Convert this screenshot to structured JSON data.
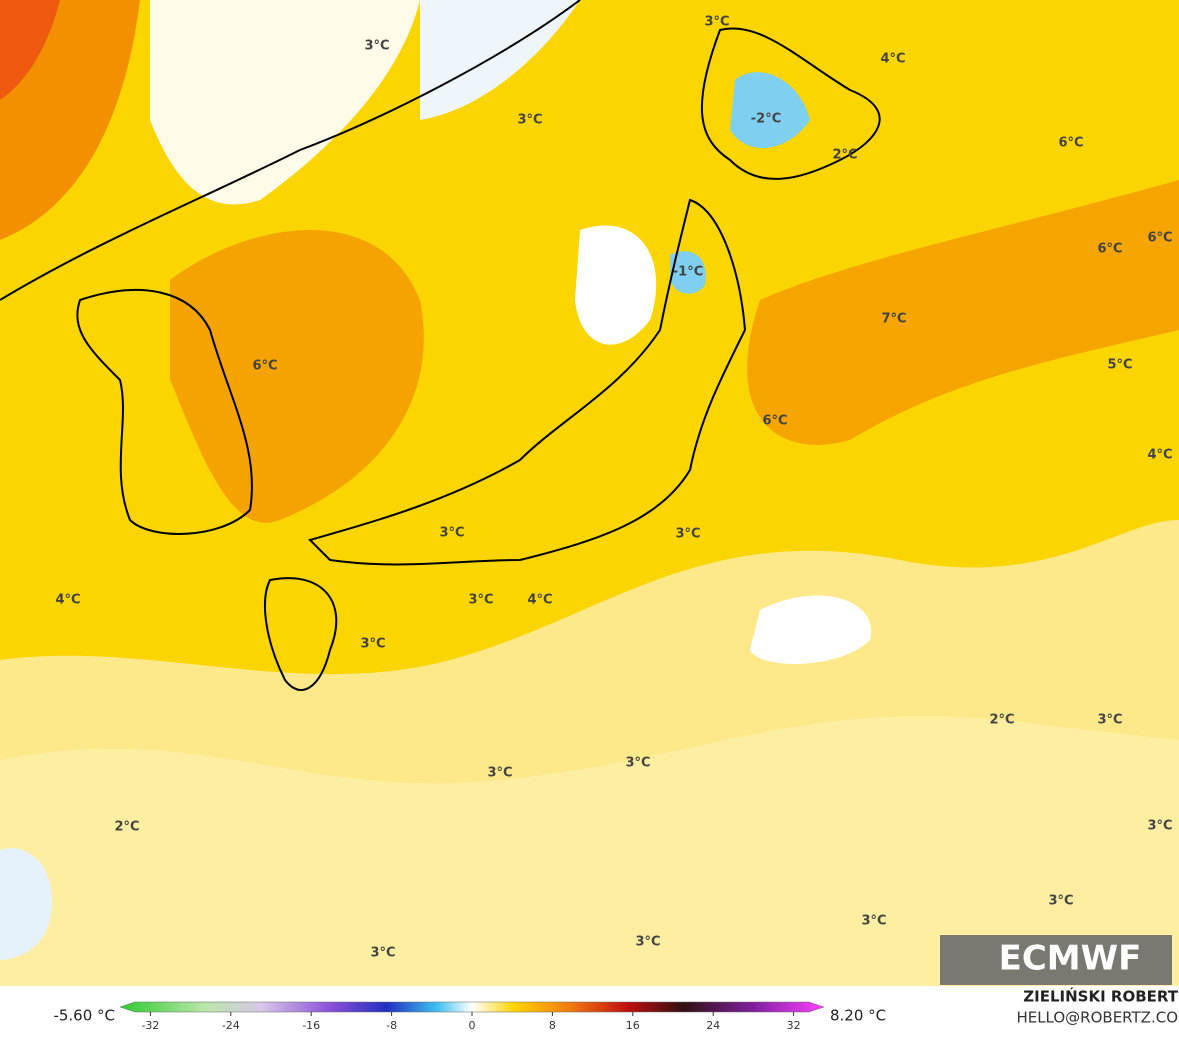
{
  "map_labels": [
    "3°C",
    "3°C",
    "4°C",
    "3°C",
    "-2°C",
    "2°C",
    "6°C",
    "6°C",
    "6°C",
    "-1°C",
    "7°C",
    "6°C",
    "5°C",
    "6°C",
    "4°C",
    "3°C",
    "3°C",
    "4°C",
    "3°C",
    "4°C",
    "3°C",
    "2°C",
    "3°C",
    "3°C",
    "3°C",
    "2°C",
    "3°C",
    "3°C",
    "3°C",
    "3°C",
    "3°C"
  ],
  "colorbar": {
    "min_label": "-5.60 °C",
    "max_label": "8.20 °C",
    "ticks": [
      -32,
      -24,
      -16,
      -8,
      0,
      8,
      16,
      24,
      32
    ]
  },
  "logo": "ECMWF",
  "credit": {
    "name": "ZIELIŃSKI ROBERT",
    "contact": "HELLO@ROBERTZ.CO"
  }
}
